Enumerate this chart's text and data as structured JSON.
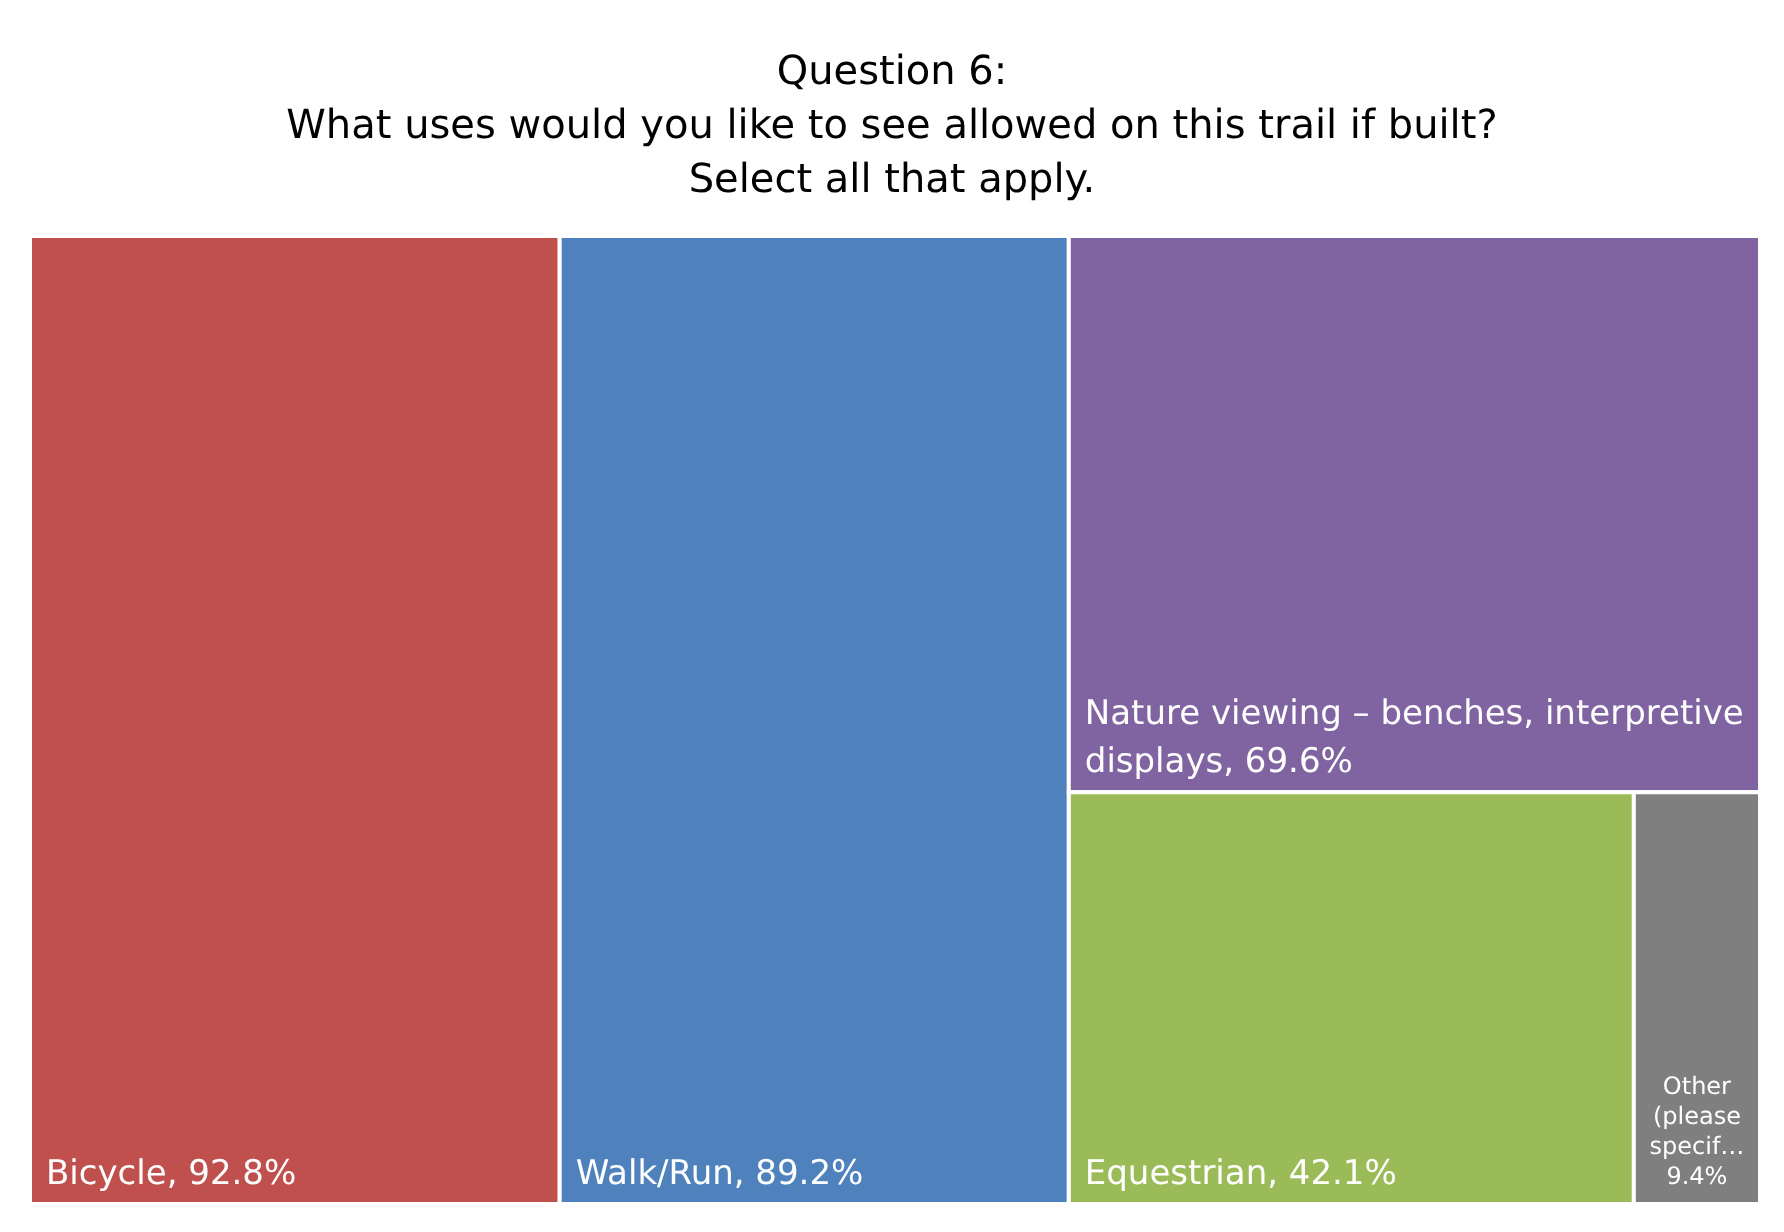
{
  "chart_data": {
    "type": "other",
    "title": "Question 6:\nWhat uses would you like to see allowed on this trail if built? Select all that apply.",
    "categories": [
      "Bicycle",
      "Walk/Run",
      "Nature viewing – benches, interpretive displays",
      "Equestrian",
      "Other (please specif…"
    ],
    "values": [
      92.8,
      89.2,
      69.6,
      42.1,
      9.4
    ],
    "value_labels": [
      ", 92.8%",
      ", 89.2%",
      ", 69.6%",
      ", 42.1%",
      "9.4%"
    ],
    "colors": [
      "#c0504d",
      "#4f81bd",
      "#8064a2",
      "#9bbb59",
      "#7f7f7f"
    ],
    "data_labels": true,
    "legend": false
  }
}
